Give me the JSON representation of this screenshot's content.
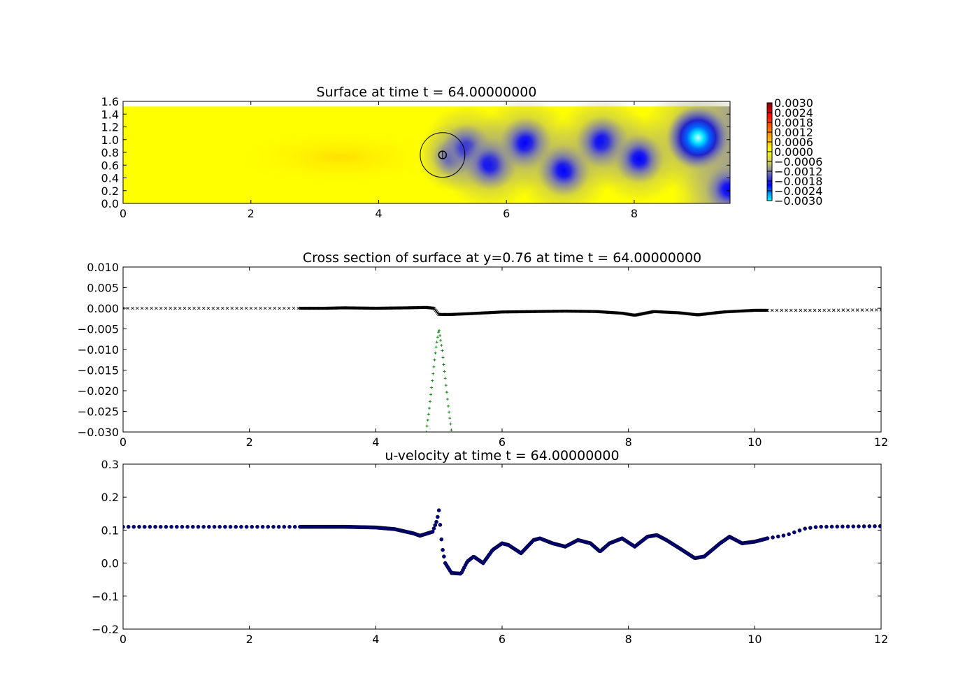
{
  "chart_data": [
    {
      "type": "heatmap",
      "title": "Surface at time t =    64.00000000",
      "xlim": [
        0,
        9.5
      ],
      "ylim": [
        0,
        1.6
      ],
      "x_ticks": [
        "0",
        "2",
        "4",
        "6",
        "8"
      ],
      "y_ticks": [
        "0.0",
        "0.2",
        "0.4",
        "0.6",
        "0.8",
        "1.0",
        "1.2",
        "1.4",
        "1.6"
      ],
      "domain_height": 1.52,
      "background_value": 0.0001,
      "colorbar": {
        "min": -0.003,
        "max": 0.003,
        "ticks": [
          "0.0030",
          "0.0024",
          "0.0018",
          "0.0012",
          "0.0006",
          "0.0000",
          "−0.0006",
          "−0.0012",
          "−0.0018",
          "−0.0024",
          "−0.0030"
        ]
      },
      "depressions": [
        {
          "x": 5.15,
          "y": 0.72,
          "value": -0.0012
        },
        {
          "x": 5.38,
          "y": 0.86,
          "value": -0.0019
        },
        {
          "x": 5.75,
          "y": 0.62,
          "value": -0.0021
        },
        {
          "x": 6.3,
          "y": 0.94,
          "value": -0.0021
        },
        {
          "x": 6.9,
          "y": 0.52,
          "value": -0.0021
        },
        {
          "x": 7.5,
          "y": 0.96,
          "value": -0.0021
        },
        {
          "x": 8.08,
          "y": 0.7,
          "value": -0.0019
        },
        {
          "x": 9.0,
          "y": 1.03,
          "value": -0.0028
        },
        {
          "x": 9.48,
          "y": 0.22,
          "value": -0.0018
        }
      ],
      "annotations": {
        "circle": {
          "cx": 5.0,
          "cy": 0.76,
          "r": 0.35
        },
        "small_circle": {
          "cx": 5.0,
          "cy": 0.76,
          "r": 0.06
        }
      }
    },
    {
      "type": "scatter",
      "title": "Cross section of surface at y=0.76 at time t =    64.00000000",
      "xlim": [
        0,
        12
      ],
      "ylim": [
        -0.03,
        0.01
      ],
      "x_ticks": [
        "0",
        "2",
        "4",
        "6",
        "8",
        "10",
        "12"
      ],
      "y_ticks": [
        "0.010",
        "0.005",
        "0.000",
        "−0.005",
        "−0.010",
        "−0.015",
        "−0.020",
        "−0.025",
        "−0.030"
      ],
      "series": [
        {
          "marker": "x",
          "color": "#000000",
          "points": [
            [
              0,
              0.0
            ],
            [
              2.8,
              0.0
            ],
            [
              3.2,
              0.0
            ],
            [
              3.5,
              0.0001
            ],
            [
              4.0,
              0.0
            ],
            [
              4.5,
              0.0001
            ],
            [
              4.8,
              0.0002
            ],
            [
              4.92,
              0.0
            ],
            [
              5.0,
              -0.0015
            ],
            [
              5.2,
              -0.0015
            ],
            [
              5.5,
              -0.0013
            ],
            [
              6.0,
              -0.0009
            ],
            [
              6.5,
              -0.0008
            ],
            [
              7.0,
              -0.0007
            ],
            [
              7.5,
              -0.0008
            ],
            [
              7.9,
              -0.0012
            ],
            [
              8.1,
              -0.0017
            ],
            [
              8.4,
              -0.0008
            ],
            [
              8.8,
              -0.0011
            ],
            [
              9.1,
              -0.0016
            ],
            [
              9.5,
              -0.0009
            ],
            [
              10.0,
              -0.0005
            ],
            [
              10.2,
              -0.0005
            ],
            [
              11.0,
              -0.0005
            ],
            [
              12.0,
              -0.0004
            ]
          ]
        },
        {
          "marker": "+",
          "color": "#008000",
          "points": [
            [
              4.8,
              -0.03
            ],
            [
              4.85,
              -0.024
            ],
            [
              4.9,
              -0.017
            ],
            [
              4.95,
              -0.01
            ],
            [
              5.0,
              -0.005
            ],
            [
              5.05,
              -0.01
            ],
            [
              5.1,
              -0.017
            ],
            [
              5.15,
              -0.024
            ],
            [
              5.2,
              -0.03
            ]
          ]
        }
      ]
    },
    {
      "type": "scatter",
      "title": "u-velocity at time t =    64.00000000",
      "xlim": [
        0,
        12
      ],
      "ylim": [
        -0.2,
        0.3
      ],
      "x_ticks": [
        "0",
        "2",
        "4",
        "6",
        "8",
        "10",
        "12"
      ],
      "y_ticks": [
        "0.3",
        "0.2",
        "0.1",
        "0.0",
        "−0.1",
        "−0.2"
      ],
      "series": [
        {
          "marker": "o",
          "color": "#000080",
          "points": [
            [
              0,
              0.11
            ],
            [
              2.8,
              0.11
            ],
            [
              3.5,
              0.11
            ],
            [
              4.0,
              0.108
            ],
            [
              4.3,
              0.103
            ],
            [
              4.6,
              0.09
            ],
            [
              4.7,
              0.083
            ],
            [
              4.9,
              0.095
            ],
            [
              4.97,
              0.13
            ],
            [
              5.0,
              0.16
            ],
            [
              5.05,
              0.05
            ],
            [
              5.1,
              0.0
            ],
            [
              5.2,
              -0.03
            ],
            [
              5.35,
              -0.032
            ],
            [
              5.45,
              0.005
            ],
            [
              5.55,
              0.02
            ],
            [
              5.7,
              0.0
            ],
            [
              5.85,
              0.04
            ],
            [
              6.0,
              0.06
            ],
            [
              6.1,
              0.055
            ],
            [
              6.3,
              0.03
            ],
            [
              6.5,
              0.07
            ],
            [
              6.6,
              0.075
            ],
            [
              6.8,
              0.06
            ],
            [
              7.0,
              0.05
            ],
            [
              7.2,
              0.07
            ],
            [
              7.4,
              0.06
            ],
            [
              7.55,
              0.035
            ],
            [
              7.7,
              0.06
            ],
            [
              7.9,
              0.075
            ],
            [
              8.1,
              0.05
            ],
            [
              8.3,
              0.08
            ],
            [
              8.45,
              0.085
            ],
            [
              8.6,
              0.07
            ],
            [
              8.85,
              0.04
            ],
            [
              9.05,
              0.015
            ],
            [
              9.2,
              0.02
            ],
            [
              9.45,
              0.06
            ],
            [
              9.6,
              0.08
            ],
            [
              9.8,
              0.06
            ],
            [
              10.0,
              0.065
            ],
            [
              10.2,
              0.075
            ],
            [
              10.5,
              0.085
            ],
            [
              10.8,
              0.105
            ],
            [
              11.0,
              0.11
            ],
            [
              12.0,
              0.112
            ]
          ]
        }
      ]
    }
  ]
}
